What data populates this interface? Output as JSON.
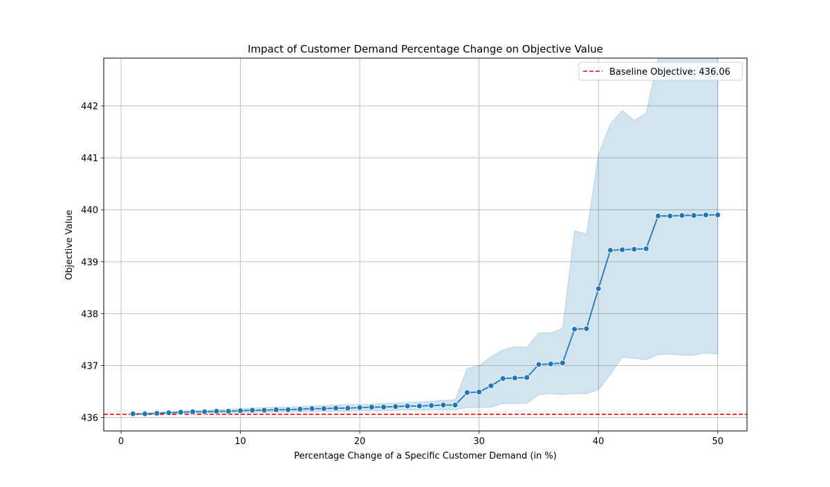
{
  "chart_data": {
    "type": "line",
    "title": "Impact of Customer Demand Percentage Change on Objective Value",
    "xlabel": "Percentage Change of a Specific Customer Demand (in %)",
    "ylabel": "Objective Value",
    "xlim": [
      -1.45,
      52.45
    ],
    "ylim": [
      435.74,
      442.92
    ],
    "x_ticks": [
      0,
      10,
      20,
      30,
      40,
      50
    ],
    "y_ticks": [
      436,
      437,
      438,
      439,
      440,
      441,
      442
    ],
    "grid": true,
    "legend_position": "top-right",
    "series": [
      {
        "color": "#1f77b4",
        "marker": "circle",
        "x": [
          1,
          2,
          3,
          4,
          5,
          6,
          7,
          8,
          9,
          10,
          11,
          12,
          13,
          14,
          15,
          16,
          17,
          18,
          19,
          20,
          21,
          22,
          23,
          24,
          25,
          26,
          27,
          28,
          29,
          30,
          31,
          32,
          33,
          34,
          35,
          36,
          37,
          38,
          39,
          40,
          41,
          42,
          43,
          44,
          45,
          46,
          47,
          48,
          49,
          50
        ],
        "y": [
          436.07,
          436.07,
          436.08,
          436.09,
          436.1,
          436.11,
          436.11,
          436.12,
          436.12,
          436.13,
          436.14,
          436.14,
          436.15,
          436.15,
          436.16,
          436.17,
          436.17,
          436.18,
          436.18,
          436.19,
          436.2,
          436.2,
          436.21,
          436.22,
          436.22,
          436.23,
          436.24,
          436.24,
          436.48,
          436.49,
          436.61,
          436.75,
          436.76,
          436.77,
          437.02,
          437.03,
          437.05,
          437.7,
          437.71,
          438.48,
          439.22,
          439.23,
          439.24,
          439.25,
          439.88,
          439.88,
          439.89,
          439.89,
          439.9,
          439.9
        ],
        "ci_lower": [
          436.06,
          436.06,
          436.06,
          436.07,
          436.07,
          436.08,
          436.08,
          436.09,
          436.09,
          436.09,
          436.1,
          436.1,
          436.1,
          436.11,
          436.11,
          436.11,
          436.12,
          436.12,
          436.12,
          436.13,
          436.13,
          436.13,
          436.14,
          436.14,
          436.14,
          436.15,
          436.15,
          436.15,
          436.19,
          436.19,
          436.2,
          436.27,
          436.27,
          436.27,
          436.44,
          436.46,
          436.44,
          436.46,
          436.46,
          436.53,
          436.83,
          437.16,
          437.14,
          437.11,
          437.21,
          437.22,
          437.2,
          437.2,
          437.24,
          437.22
        ],
        "ci_upper": [
          436.08,
          436.08,
          436.1,
          436.11,
          436.12,
          436.13,
          436.14,
          436.15,
          436.16,
          436.17,
          436.18,
          436.19,
          436.2,
          436.2,
          436.21,
          436.22,
          436.23,
          436.24,
          436.25,
          436.25,
          436.26,
          436.27,
          436.28,
          436.29,
          436.3,
          436.31,
          436.33,
          436.34,
          436.94,
          437.0,
          437.17,
          437.3,
          437.36,
          437.35,
          437.63,
          437.63,
          437.71,
          439.6,
          439.53,
          441.06,
          441.65,
          441.91,
          441.72,
          441.86,
          442.92,
          442.92,
          442.92,
          442.92,
          442.92,
          442.92
        ]
      }
    ],
    "reference_line": {
      "y": 436.06,
      "color": "#ff0000",
      "style": "dashed",
      "label": "Baseline Objective: 436.06"
    }
  }
}
